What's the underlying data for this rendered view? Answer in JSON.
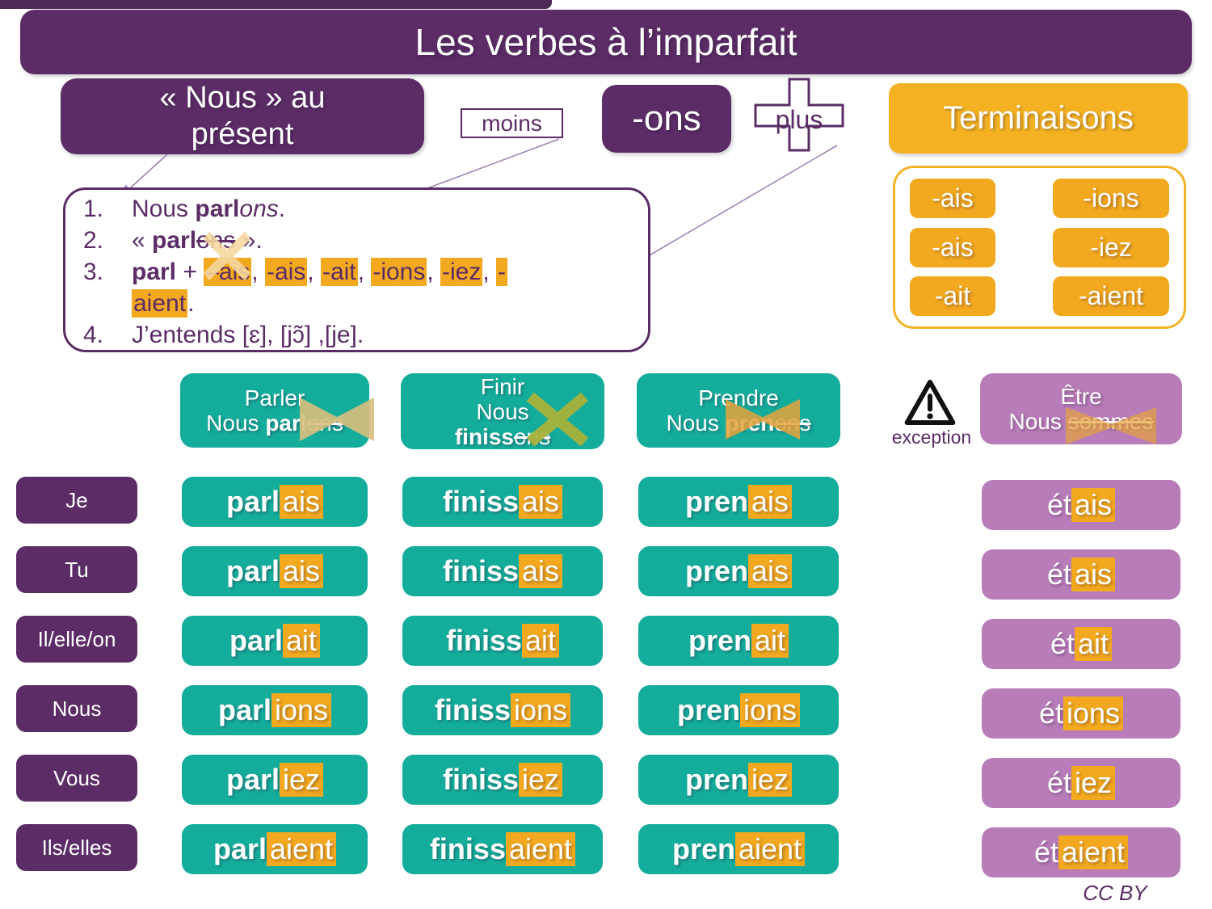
{
  "page": {
    "title": "Les verbes à l’imparfait",
    "credit": "CC BY"
  },
  "flow": {
    "nous_line1": "« Nous » au",
    "nous_line2": "présent",
    "minus_label": "moins",
    "ons_label": "-ons",
    "plus_label": "plus",
    "terminaisons_title": "Terminaisons",
    "endings_grid": [
      [
        "-ais",
        "-ions"
      ],
      [
        "-ais",
        "-iez"
      ],
      [
        "-ait",
        "-aient"
      ]
    ]
  },
  "steps": [
    {
      "num": "1.",
      "segments": [
        {
          "t": "Nous "
        },
        {
          "t": "parl",
          "b": true
        },
        {
          "t": "ons",
          "i": true
        },
        {
          "t": "."
        }
      ]
    },
    {
      "num": "2.",
      "segments": [
        {
          "t": "« "
        },
        {
          "t": "parl",
          "b": true
        },
        {
          "t": "ons",
          "strike": true
        },
        {
          "t": " »."
        }
      ]
    },
    {
      "num": "3.",
      "segments": [
        {
          "t": " "
        },
        {
          "t": "parl",
          "b": true
        },
        {
          "t": " + "
        },
        {
          "t": "–ais",
          "hl": true
        },
        {
          "t": ", "
        },
        {
          "t": "-ais",
          "hl": true
        },
        {
          "t": ", "
        },
        {
          "t": "-ait",
          "hl": true
        },
        {
          "t": ", "
        },
        {
          "t": "-ions",
          "hl": true
        },
        {
          "t": ", "
        },
        {
          "t": "-iez",
          "hl": true
        },
        {
          "t": ", "
        },
        {
          "t": "-",
          "hl": true
        },
        {
          "br": true
        },
        {
          "t": "aient",
          "hl": true
        },
        {
          "t": "."
        }
      ]
    },
    {
      "num": "4.",
      "segments": [
        {
          "t": "J’entends [ɛ], [jɔ̃] ,[je]."
        }
      ]
    }
  ],
  "labels": {
    "exception": "exception"
  },
  "pronouns": [
    "Je",
    "Tu",
    "Il/elle/on",
    "Nous",
    "Vous",
    "Ils/elles"
  ],
  "columns": [
    {
      "id": "parler",
      "header": [
        [
          {
            "t": "Parler"
          }
        ],
        [
          {
            "t": "Nous "
          },
          {
            "t": "parl",
            "b": true
          },
          {
            "t": "ons",
            "strike": true
          }
        ]
      ],
      "cells": [
        {
          "stem": "parl",
          "end": "ais"
        },
        {
          "stem": "parl",
          "end": "ais"
        },
        {
          "stem": "parl",
          "end": "ait"
        },
        {
          "stem": "parl",
          "end": "ions"
        },
        {
          "stem": "parl",
          "end": "iez"
        },
        {
          "stem": "parl",
          "end": "aient"
        }
      ]
    },
    {
      "id": "finir",
      "header": [
        [
          {
            "t": "Finir"
          }
        ],
        [
          {
            "t": "Nous"
          }
        ],
        [
          {
            "t": "finiss",
            "b": true
          },
          {
            "t": "ons",
            "strike": true
          }
        ]
      ],
      "cells": [
        {
          "stem": "finiss",
          "end": "ais"
        },
        {
          "stem": "finiss",
          "end": "ais"
        },
        {
          "stem": "finiss",
          "end": "ait"
        },
        {
          "stem": "finiss",
          "end": "ions"
        },
        {
          "stem": "finiss",
          "end": "iez"
        },
        {
          "stem": "finiss",
          "end": "aient"
        }
      ]
    },
    {
      "id": "prendre",
      "header": [
        [
          {
            "t": "Prendre"
          }
        ],
        [
          {
            "t": "Nous "
          },
          {
            "t": "pren",
            "b": true
          },
          {
            "t": "ons",
            "strike": true
          }
        ]
      ],
      "cells": [
        {
          "stem": "pren",
          "end": "ais"
        },
        {
          "stem": "pren",
          "end": "ais"
        },
        {
          "stem": "pren",
          "end": "ait"
        },
        {
          "stem": "pren",
          "end": "ions"
        },
        {
          "stem": "pren",
          "end": "iez"
        },
        {
          "stem": "pren",
          "end": "aient"
        }
      ]
    },
    {
      "id": "etre",
      "header": [
        [
          {
            "t": "Être"
          }
        ],
        [
          {
            "t": "Nous "
          },
          {
            "t": "sommes",
            "strike": true
          }
        ]
      ],
      "cells": [
        {
          "stem": "ét",
          "end": "ais"
        },
        {
          "stem": "ét",
          "end": "ais"
        },
        {
          "stem": "ét",
          "end": "ait"
        },
        {
          "stem": "ét",
          "end": "ions"
        },
        {
          "stem": "ét",
          "end": "iez"
        },
        {
          "stem": "ét",
          "end": "aient"
        }
      ]
    }
  ],
  "colors": {
    "purple_dark": "#5b2c66",
    "purple_strip": "#4e2a58",
    "teal": "#14ad9c",
    "orange_highlight": "#f2a81f",
    "yellow_terminaisons": "#f4b223",
    "yellow_panel_border": "#f2b427",
    "mauve": "#b87cb9",
    "arrow_line": "#a085b5",
    "x_tan": "#d9bf7e",
    "x_olive": "#a9b23b",
    "x_orange": "#e6a33c",
    "x_pale": "#f6d8a0",
    "text_white": "#ffffff"
  }
}
